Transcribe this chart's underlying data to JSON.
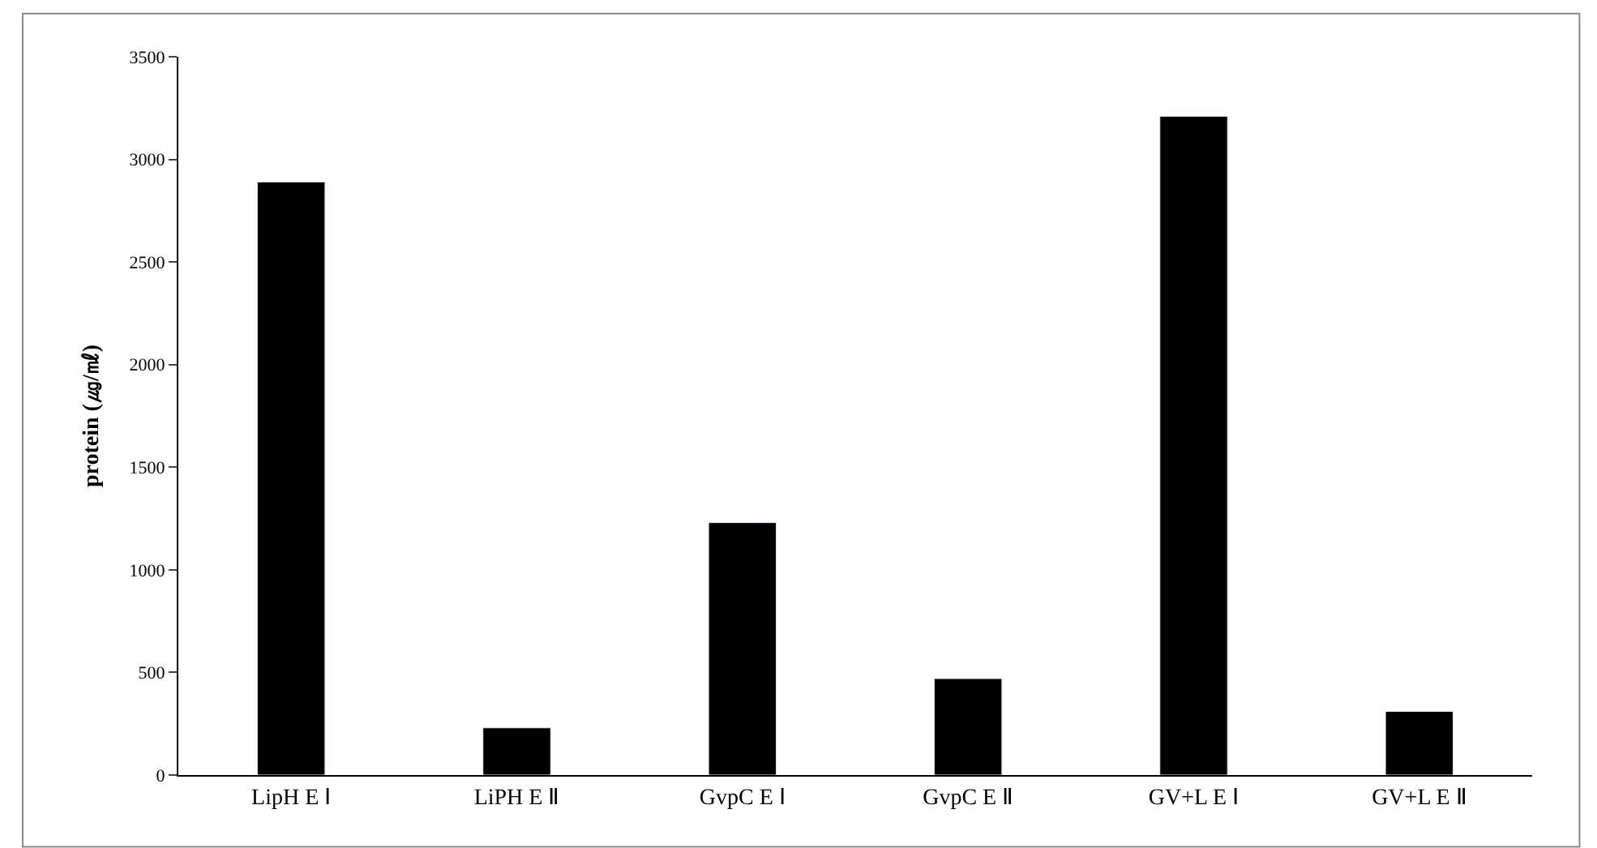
{
  "chart_data": {
    "type": "bar",
    "ylabel": "protein (㎍/㎖)",
    "categories": [
      "LipH E Ⅰ",
      "LiPH E Ⅱ",
      "GvpC E Ⅰ",
      "GvpC E Ⅱ",
      "GV+L E Ⅰ",
      "GV+L E Ⅱ"
    ],
    "values": [
      2890,
      230,
      1230,
      470,
      3210,
      310
    ],
    "color": "#000000",
    "ylim": [
      0,
      3500
    ],
    "yticks": [
      0,
      500,
      1000,
      1500,
      2000,
      2500,
      3000,
      3500
    ]
  }
}
